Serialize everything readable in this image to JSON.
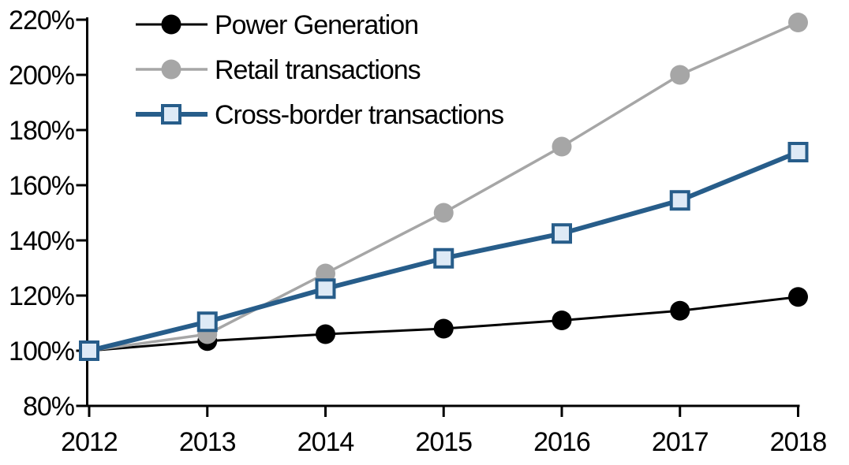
{
  "chart_data": {
    "type": "line",
    "title": "",
    "xlabel": "",
    "ylabel": "",
    "categories": [
      "2012",
      "2013",
      "2014",
      "2015",
      "2016",
      "2017",
      "2018"
    ],
    "y_tick_labels": [
      "80%",
      "100%",
      "120%",
      "140%",
      "160%",
      "180%",
      "200%",
      "220%"
    ],
    "ylim": [
      80,
      220
    ],
    "y_tick_step": 20,
    "grid": false,
    "legend_position": "top-left-inside",
    "axis_color": "#000000",
    "background_color": "#ffffff",
    "series": [
      {
        "name": "Power Generation",
        "values": [
          100,
          103.5,
          106,
          108,
          111,
          114.5,
          119.5
        ],
        "color": "#000000",
        "line_width": 3,
        "marker": "circle",
        "marker_fill": "#000000"
      },
      {
        "name": "Retail transactions",
        "values": [
          100,
          106,
          128,
          150,
          174,
          200,
          219
        ],
        "color": "#a6a6a6",
        "line_width": 3.5,
        "marker": "circle",
        "marker_fill": "#a6a6a6"
      },
      {
        "name": "Cross-border transactions",
        "values": [
          100,
          110.5,
          122.5,
          133.5,
          142.5,
          154.5,
          172
        ],
        "color": "#275d8a",
        "line_width": 6,
        "marker": "square",
        "marker_fill": "#deeaf6"
      }
    ]
  }
}
